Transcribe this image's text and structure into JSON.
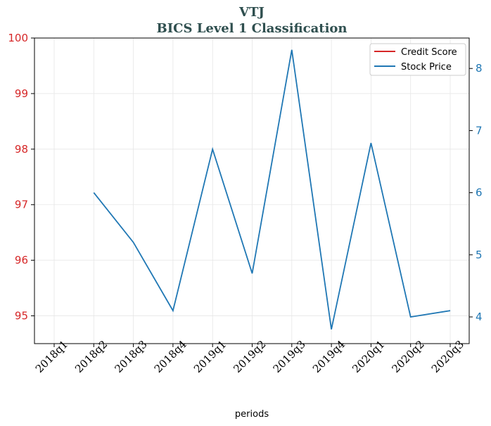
{
  "chart_data": {
    "type": "line",
    "title": "VTJ",
    "subtitle": "BICS Level 1 Classification",
    "xlabel": "periods",
    "ylabel_left": "",
    "ylabel_right": "",
    "categories": [
      "2018q1",
      "2018q2",
      "2018q3",
      "2018q4",
      "2019q1",
      "2019q2",
      "2019q3",
      "2019q4",
      "2020q1",
      "2020q2",
      "2020q3"
    ],
    "y_left": {
      "lim": [
        94.5,
        100
      ],
      "ticks": [
        95,
        96,
        97,
        98,
        99,
        100
      ],
      "color": "#d62728"
    },
    "y_right": {
      "lim": [
        3.57,
        8.49
      ],
      "ticks": [
        4,
        5,
        6,
        7,
        8
      ],
      "color": "#1f77b4"
    },
    "series": [
      {
        "name": "Credit Score",
        "axis": "left",
        "color": "#d62728",
        "values": [
          null,
          null,
          null,
          null,
          null,
          null,
          null,
          null,
          null,
          null,
          null
        ]
      },
      {
        "name": "Stock Price",
        "axis": "right",
        "color": "#1f77b4",
        "values": [
          null,
          6.0,
          5.2,
          4.1,
          6.7,
          4.7,
          8.3,
          3.8,
          6.8,
          4.0,
          4.1
        ]
      }
    ],
    "grid": true,
    "legend": "top-right"
  }
}
